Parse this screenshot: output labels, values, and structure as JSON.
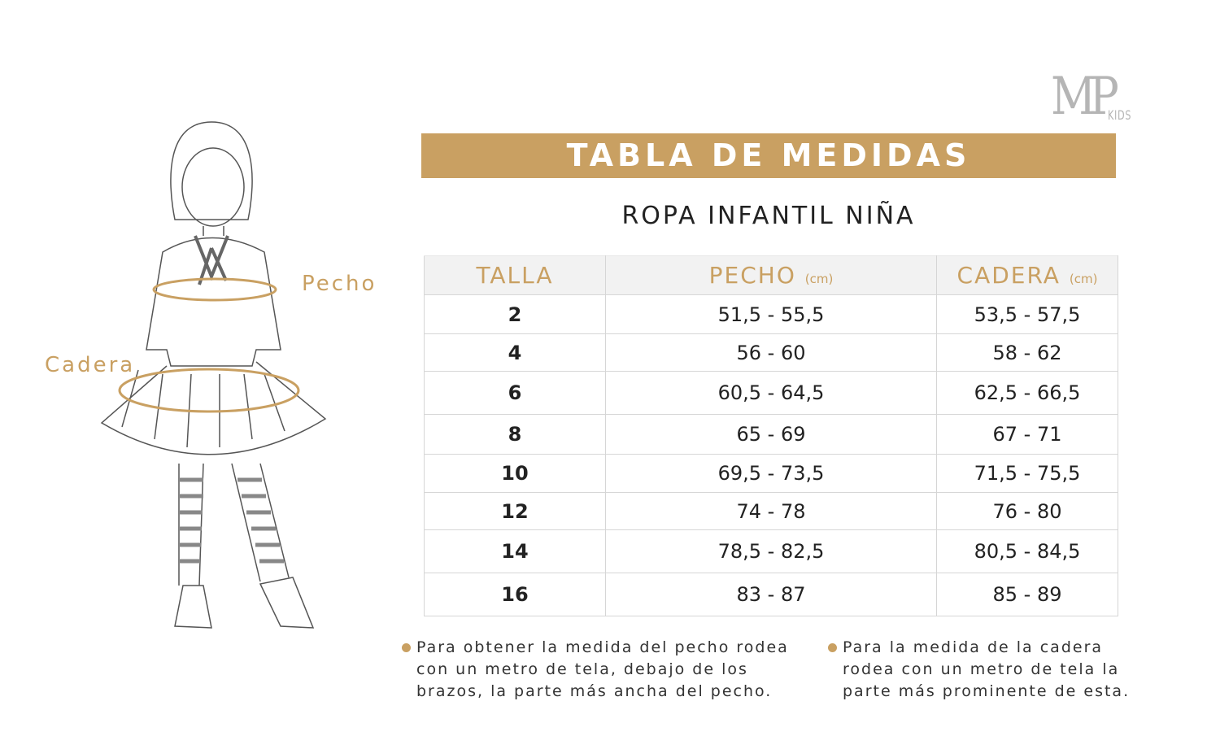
{
  "logo": {
    "text": "MP",
    "sub": "KIDS"
  },
  "title": "TABLA DE MEDIDAS",
  "subtitle": "ROPA INFANTIL NIÑA",
  "colors": {
    "accent": "#c9a062",
    "header_bg": "#f2f2f2",
    "logo": "#b5b5b5"
  },
  "illustration": {
    "chest_label": "Pecho",
    "hip_label": "Cadera"
  },
  "table": {
    "headers": [
      {
        "label": "TALLA",
        "unit": ""
      },
      {
        "label": "PECHO",
        "unit": "(cm)"
      },
      {
        "label": "CADERA",
        "unit": "(cm)"
      }
    ],
    "rows": [
      [
        "2",
        "51,5 - 55,5",
        "53,5 - 57,5"
      ],
      [
        "4",
        "56 - 60",
        "58 - 62"
      ],
      [
        "6",
        "60,5 - 64,5",
        "62,5 - 66,5"
      ],
      [
        "8",
        "65 - 69",
        "67 - 71"
      ],
      [
        "10",
        "69,5 - 73,5",
        "71,5 - 75,5"
      ],
      [
        "12",
        "74 - 78",
        "76 - 80"
      ],
      [
        "14",
        "78,5 - 82,5",
        "80,5 - 84,5"
      ],
      [
        "16",
        "83 - 87",
        "85 - 89"
      ]
    ]
  },
  "notes": [
    [
      "Para obtener la medida del pecho rodea",
      "con un metro de tela, debajo de los",
      "brazos, la parte más ancha del pecho."
    ],
    [
      "Para la medida de la cadera",
      "rodea con un metro de tela la",
      "parte más prominente de esta."
    ]
  ]
}
